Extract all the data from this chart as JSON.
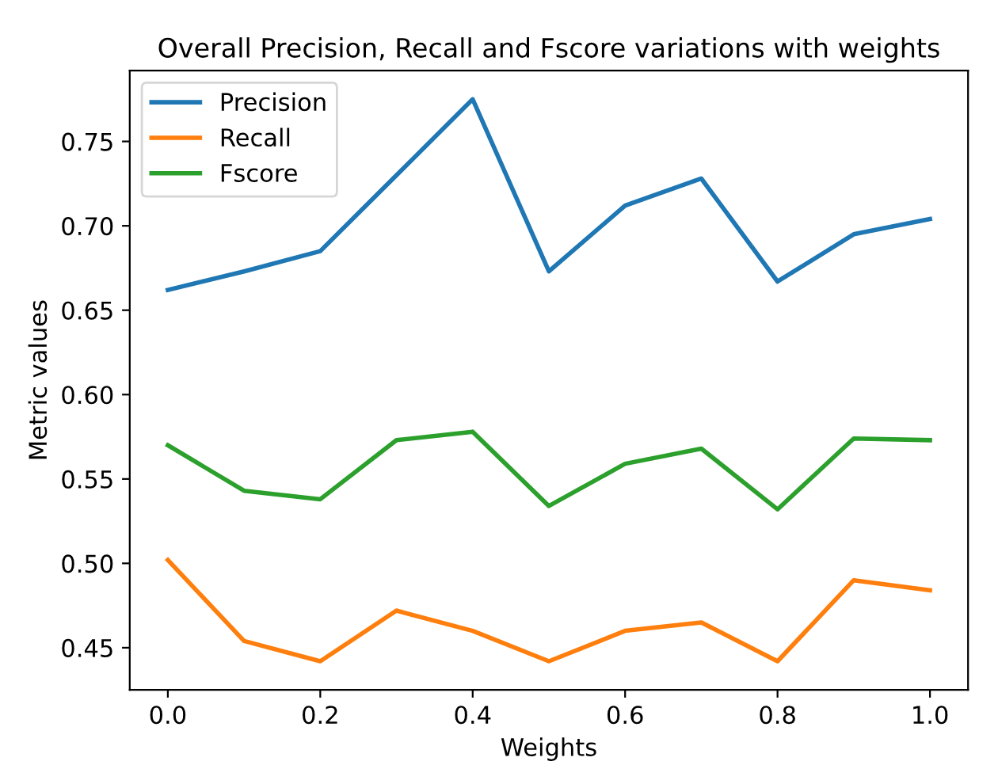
{
  "chart_data": {
    "type": "line",
    "title": "Overall Precision, Recall and Fscore variations with weights",
    "xlabel": "Weights",
    "ylabel": "Metric values",
    "x": [
      0.0,
      0.1,
      0.2,
      0.3,
      0.4,
      0.5,
      0.6,
      0.7,
      0.8,
      0.9,
      1.0
    ],
    "series": [
      {
        "name": "Precision",
        "color": "#1f77b4",
        "values": [
          0.662,
          0.673,
          0.685,
          0.73,
          0.775,
          0.673,
          0.712,
          0.728,
          0.667,
          0.695,
          0.704
        ]
      },
      {
        "name": "Recall",
        "color": "#ff7f0e",
        "values": [
          0.502,
          0.454,
          0.442,
          0.472,
          0.46,
          0.442,
          0.46,
          0.465,
          0.442,
          0.49,
          0.484
        ]
      },
      {
        "name": "Fscore",
        "color": "#2ca02c",
        "values": [
          0.57,
          0.543,
          0.538,
          0.573,
          0.578,
          0.534,
          0.559,
          0.568,
          0.532,
          0.574,
          0.573
        ]
      }
    ],
    "xlim": [
      -0.05,
      1.05
    ],
    "ylim": [
      0.425,
      0.792
    ],
    "xticks": [
      {
        "value": 0.0,
        "label": "0.0"
      },
      {
        "value": 0.2,
        "label": "0.2"
      },
      {
        "value": 0.4,
        "label": "0.4"
      },
      {
        "value": 0.6,
        "label": "0.6"
      },
      {
        "value": 0.8,
        "label": "0.8"
      },
      {
        "value": 1.0,
        "label": "1.0"
      }
    ],
    "yticks": [
      {
        "value": 0.45,
        "label": "0.45"
      },
      {
        "value": 0.5,
        "label": "0.50"
      },
      {
        "value": 0.55,
        "label": "0.55"
      },
      {
        "value": 0.6,
        "label": "0.60"
      },
      {
        "value": 0.65,
        "label": "0.65"
      },
      {
        "value": 0.7,
        "label": "0.70"
      },
      {
        "value": 0.75,
        "label": "0.75"
      }
    ],
    "grid": false,
    "legend": "top left",
    "marker": "none",
    "line_style": "solid"
  }
}
